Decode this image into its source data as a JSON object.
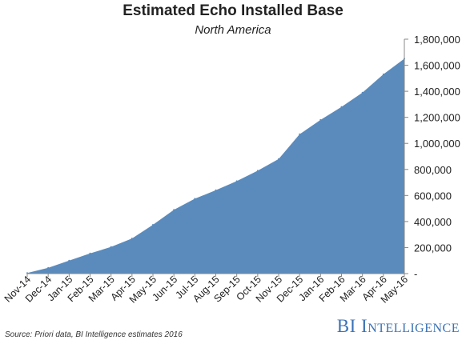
{
  "chart_data": {
    "type": "area",
    "title": "Estimated Echo Installed Base",
    "subtitle": "North America",
    "xlabel": "",
    "ylabel": "",
    "x": [
      "Nov-14",
      "Dec-14",
      "Jan-15",
      "Feb-15",
      "Mar-15",
      "Apr-15",
      "May-15",
      "Jun-15",
      "Jul-15",
      "Aug-15",
      "Sep-15",
      "Oct-15",
      "Nov-15",
      "Dec-15",
      "Jan-16",
      "Feb-16",
      "Mar-16",
      "Apr-16",
      "May-16"
    ],
    "series": [
      {
        "values": [
          5000,
          45000,
          100000,
          155000,
          205000,
          270000,
          375000,
          490000,
          575000,
          640000,
          710000,
          790000,
          880000,
          1070000,
          1180000,
          1280000,
          1390000,
          1530000,
          1650000
        ]
      }
    ],
    "ylim": [
      0,
      1800000
    ],
    "yticks": [
      0,
      200000,
      400000,
      600000,
      800000,
      1000000,
      1200000,
      1400000,
      1600000,
      1800000
    ],
    "ytick_labels": [
      "-",
      "200,000",
      "400,000",
      "600,000",
      "800,000",
      "1,000,000",
      "1,200,000",
      "1,400,000",
      "1,600,000",
      "1,800,000"
    ],
    "y_axis_side": "right",
    "grid": false,
    "legend": "none",
    "fill_color": "#5b8bbc",
    "axis_color": "#888888"
  },
  "footer": {
    "source": "Source: Priori data, BI Intelligence estimates 2016",
    "brand": "BI Intelligence",
    "brand_color": "#3a72b5"
  }
}
